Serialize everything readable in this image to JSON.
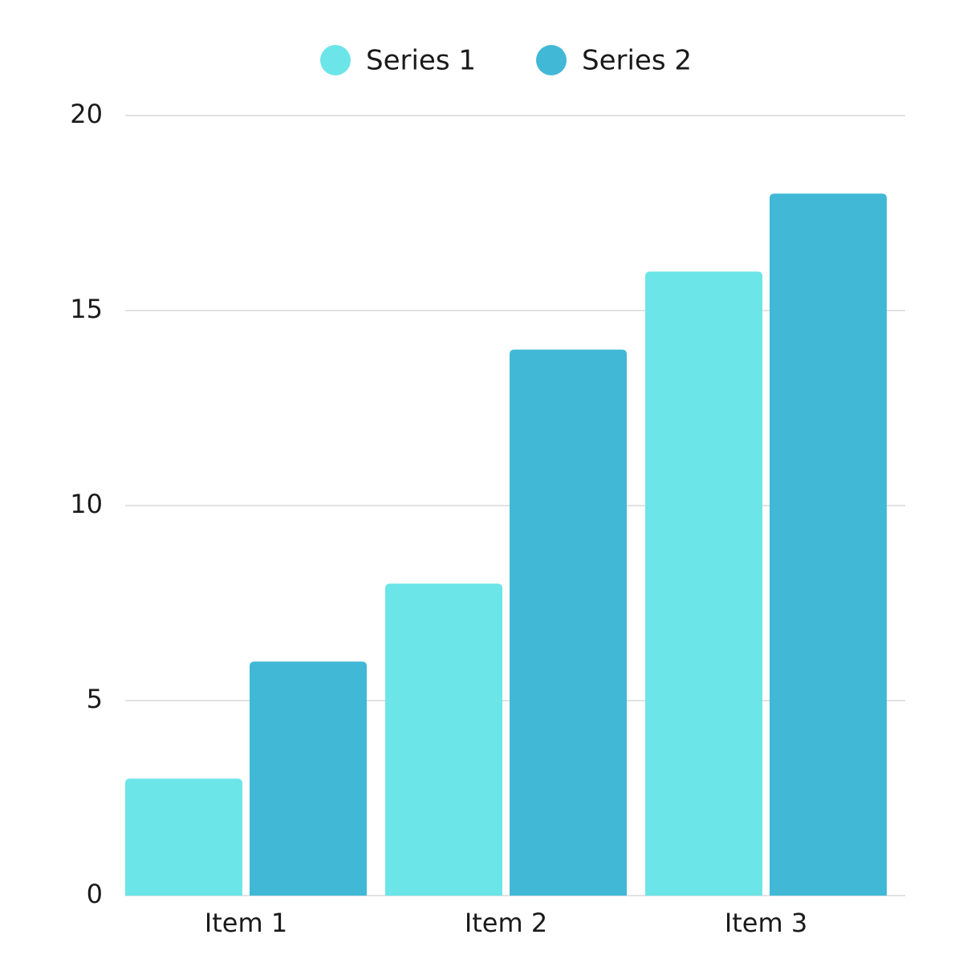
{
  "chart_data": {
    "type": "bar",
    "categories": [
      "Item 1",
      "Item 2",
      "Item 3"
    ],
    "series": [
      {
        "name": "Series 1",
        "color": "#6ce5e8",
        "values": [
          3,
          8,
          16
        ]
      },
      {
        "name": "Series 2",
        "color": "#41b8d5",
        "values": [
          6,
          14,
          18
        ]
      }
    ],
    "ylim": [
      0,
      20
    ],
    "yticks": [
      0,
      5,
      10,
      15,
      20
    ],
    "grid": true,
    "legend": "top"
  }
}
